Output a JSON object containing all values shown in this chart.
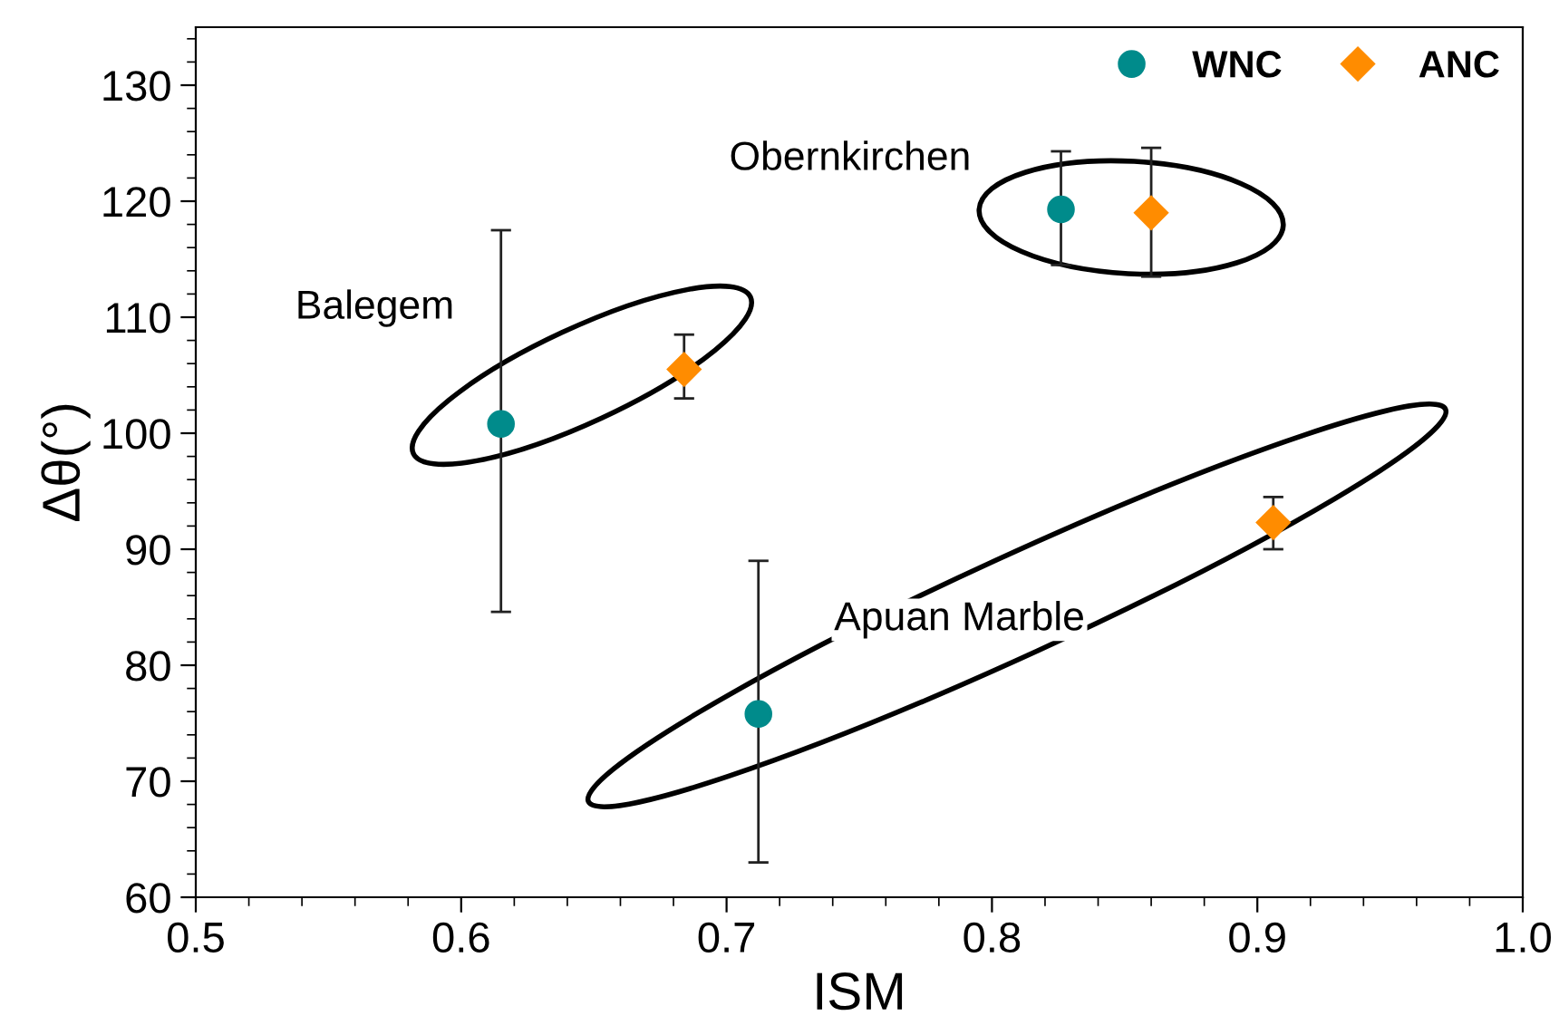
{
  "chart_data": {
    "type": "scatter",
    "xlabel": "ISM",
    "ylabel": "Δθ(°)",
    "xlim": [
      0.5,
      1.0
    ],
    "xticks": [
      0.5,
      0.6,
      0.7,
      0.8,
      0.9,
      {
        "value": 1.0,
        "label": "1.0"
      }
    ],
    "ylim": [
      60,
      135
    ],
    "yticks": [
      60,
      70,
      80,
      90,
      100,
      110,
      120,
      130
    ],
    "grid": false,
    "legend": "top right",
    "series": [
      {
        "name": "WNC",
        "color": "#008b8b",
        "marker": "circle",
        "x": [
          0.615,
          0.712,
          0.826
        ],
        "values": [
          100.8,
          75.8,
          119.3
        ],
        "errors": [
          [
            84.6,
            117.5
          ],
          [
            63,
            89
          ],
          [
            114.5,
            124.3
          ]
        ]
      },
      {
        "name": "ANC",
        "color": "#ff8c00",
        "marker": "diamond",
        "x": [
          0.684,
          0.906,
          0.86
        ],
        "values": [
          105.5,
          92.3,
          119
        ],
        "errors": [
          [
            103,
            108.5
          ],
          [
            90,
            94.5
          ],
          [
            113.5,
            124.6
          ]
        ]
      }
    ],
    "annotations": [
      "Balegem",
      "Apuan Marble",
      "Obernkirchen"
    ]
  }
}
